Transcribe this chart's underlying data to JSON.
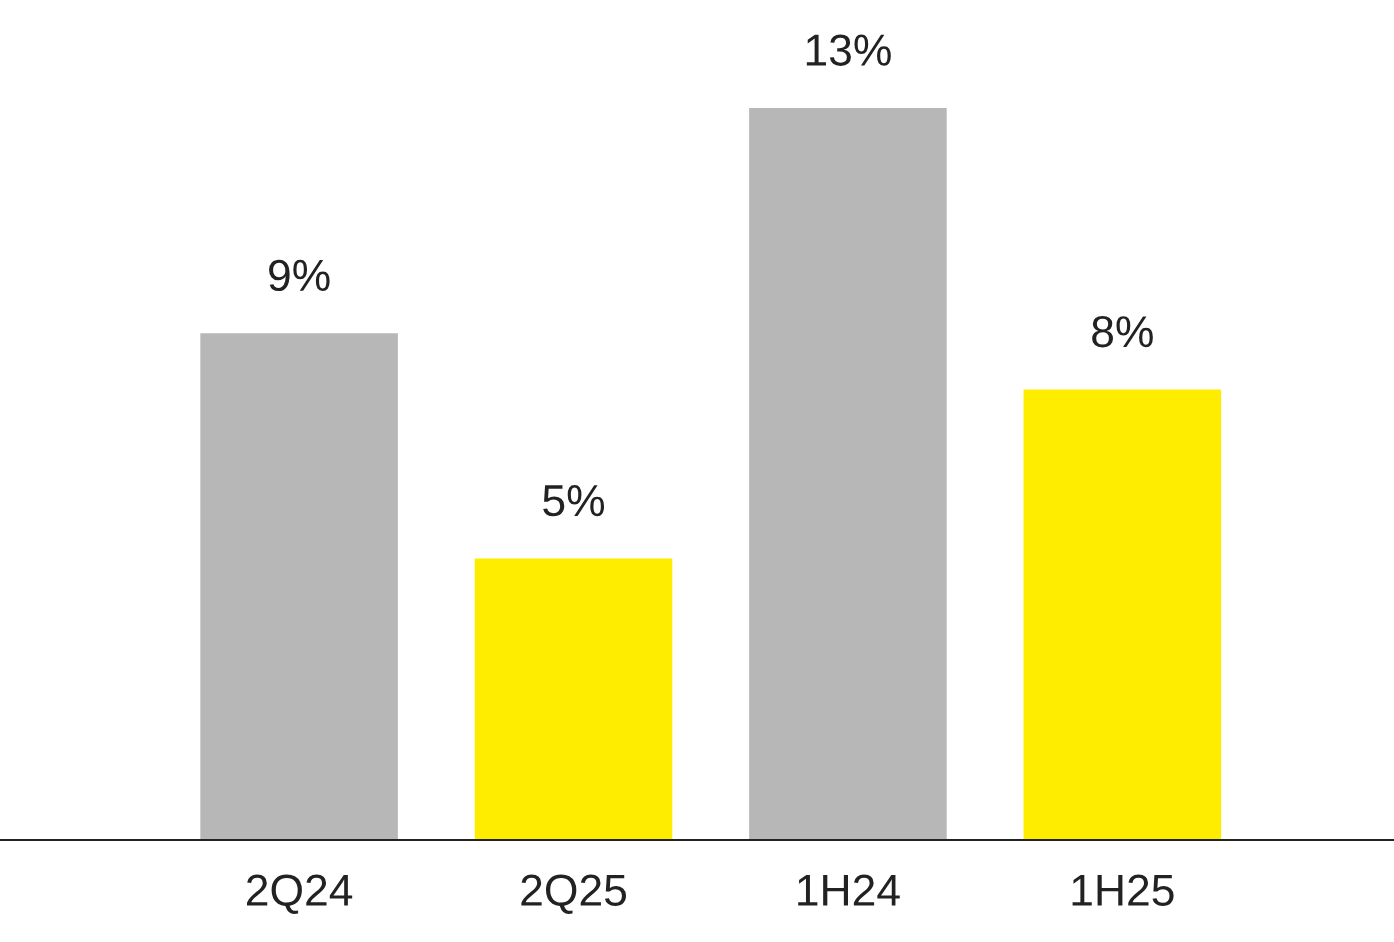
{
  "chart_data": {
    "type": "bar",
    "categories": [
      "2Q24",
      "2Q25",
      "1H24",
      "1H25"
    ],
    "values": [
      9,
      5,
      13,
      8
    ],
    "colors": [
      "#b7b7b7",
      "#ffed00",
      "#b7b7b7",
      "#ffed00"
    ],
    "value_labels": [
      "9%",
      "5%",
      "13%",
      "8%"
    ],
    "grid": false,
    "legend": false
  }
}
